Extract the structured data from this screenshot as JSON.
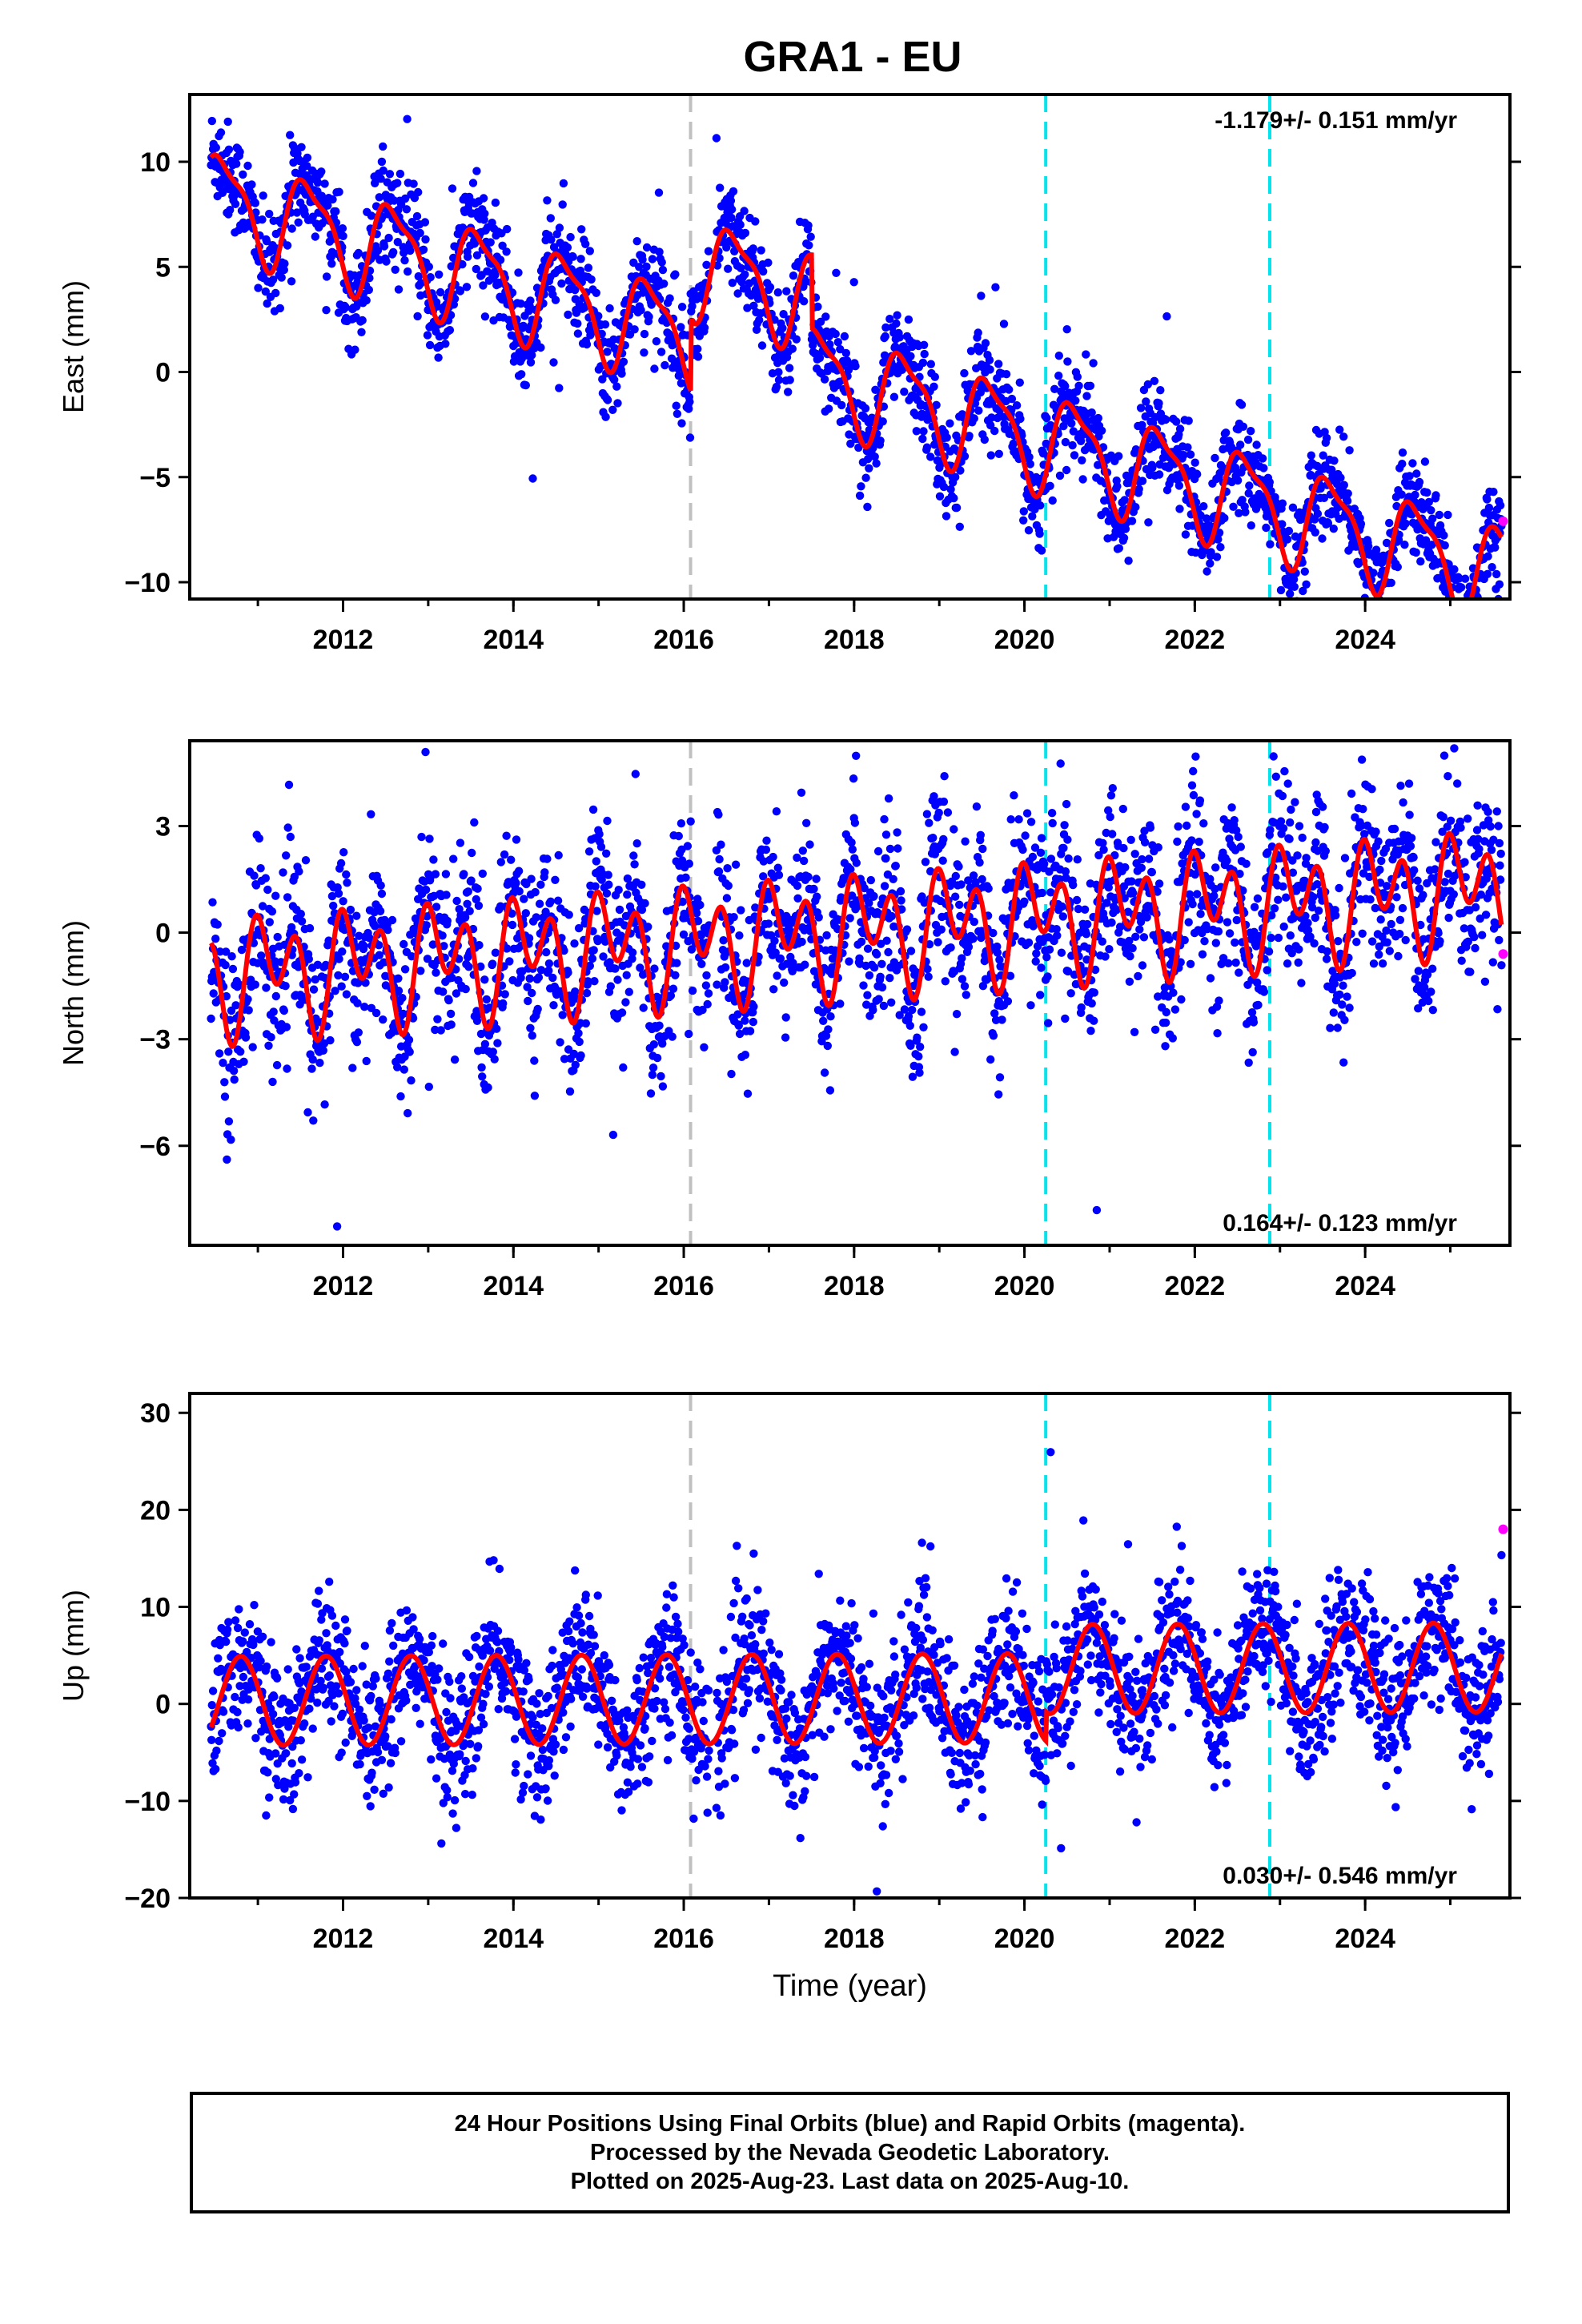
{
  "title": "GRA1 - EU",
  "chart_data": [
    {
      "type": "scatter",
      "ylabel": "East (mm)",
      "xlabel": "",
      "xlim": [
        2010.2,
        2025.7
      ],
      "ylim": [
        -10.8,
        13.2
      ],
      "yticks": [
        10,
        5,
        0,
        -5,
        -10
      ],
      "xticks": [
        2012,
        2014,
        2016,
        2018,
        2020,
        2022,
        2024
      ],
      "rate_label": "-1.179+/- 0.151 mm/yr",
      "rate_position": "top-right",
      "vertical_lines": [
        {
          "x": 2016.08,
          "color": "#c0c0c0"
        },
        {
          "x": 2020.25,
          "color": "#00e5ee"
        },
        {
          "x": 2022.88,
          "color": "#00e5ee"
        }
      ],
      "fit": {
        "offset": 8.3,
        "rate": -1.179,
        "annual": 2.2,
        "semiannual": 0.7,
        "phase": 0.35,
        "noise": 1.2,
        "steps": [
          {
            "start": 2016.08,
            "end": 2017.5,
            "shift": 3.5
          }
        ]
      },
      "series": [
        {
          "color": "#0000ff",
          "x_start": 2010.45,
          "x_end": 2025.6
        },
        {
          "color": "#ff00ff",
          "points": [
            [
              2025.62,
              -7.1
            ]
          ]
        },
        {
          "color": "#ff0000",
          "style": "line"
        }
      ]
    },
    {
      "type": "scatter",
      "ylabel": "North (mm)",
      "xlabel": "",
      "xlim": [
        2010.2,
        2025.7
      ],
      "ylim": [
        -8.8,
        5.4
      ],
      "yticks": [
        3,
        0,
        -3,
        -6
      ],
      "xticks": [
        2012,
        2014,
        2016,
        2018,
        2020,
        2022,
        2024
      ],
      "rate_label": "0.164+/- 0.123 mm/yr",
      "rate_position": "bottom-right",
      "vertical_lines": [
        {
          "x": 2016.08,
          "color": "#c0c0c0"
        },
        {
          "x": 2020.25,
          "color": "#00e5ee"
        },
        {
          "x": 2022.88,
          "color": "#00e5ee"
        }
      ],
      "fit": {
        "offset": -1.2,
        "rate": 0.164,
        "annual": 0.9,
        "semiannual": 1.2,
        "phase": 0.9,
        "noise": 1.2,
        "steps": []
      },
      "series": [
        {
          "color": "#0000ff",
          "x_start": 2010.45,
          "x_end": 2025.6
        },
        {
          "color": "#ff00ff",
          "points": [
            [
              2025.62,
              -0.6
            ]
          ]
        },
        {
          "color": "#ff0000",
          "style": "line"
        }
      ]
    },
    {
      "type": "scatter",
      "ylabel": "Up (mm)",
      "xlabel": "Time (year)",
      "xlim": [
        2010.2,
        2025.7
      ],
      "ylim": [
        -20,
        32
      ],
      "yticks": [
        30,
        20,
        10,
        0,
        -10,
        -20
      ],
      "xticks": [
        2012,
        2014,
        2016,
        2018,
        2020,
        2022,
        2024
      ],
      "rate_label": "0.030+/- 0.546 mm/yr",
      "rate_position": "bottom-right",
      "vertical_lines": [
        {
          "x": 2016.08,
          "color": "#c0c0c0"
        },
        {
          "x": 2020.25,
          "color": "#00e5ee"
        },
        {
          "x": 2022.88,
          "color": "#00e5ee"
        }
      ],
      "fit": {
        "offset": 0.3,
        "rate": 0.03,
        "annual": 4.6,
        "semiannual": 0.0,
        "phase": 0.55,
        "noise": 3.6,
        "steps": [
          {
            "start": 2020.25,
            "end": 2025.7,
            "shift": 3.0
          }
        ]
      },
      "series": [
        {
          "color": "#0000ff",
          "x_start": 2010.45,
          "x_end": 2025.6
        },
        {
          "color": "#ff00ff",
          "points": [
            [
              2025.62,
              18.0
            ]
          ]
        },
        {
          "color": "#ff0000",
          "style": "line"
        }
      ]
    }
  ],
  "footer": {
    "line1": "24 Hour Positions Using Final Orbits (blue) and Rapid Orbits (magenta).",
    "line2": "Processed by the Nevada Geodetic Laboratory.",
    "line3": "Plotted on 2025-Aug-23. Last data on 2025-Aug-10."
  }
}
